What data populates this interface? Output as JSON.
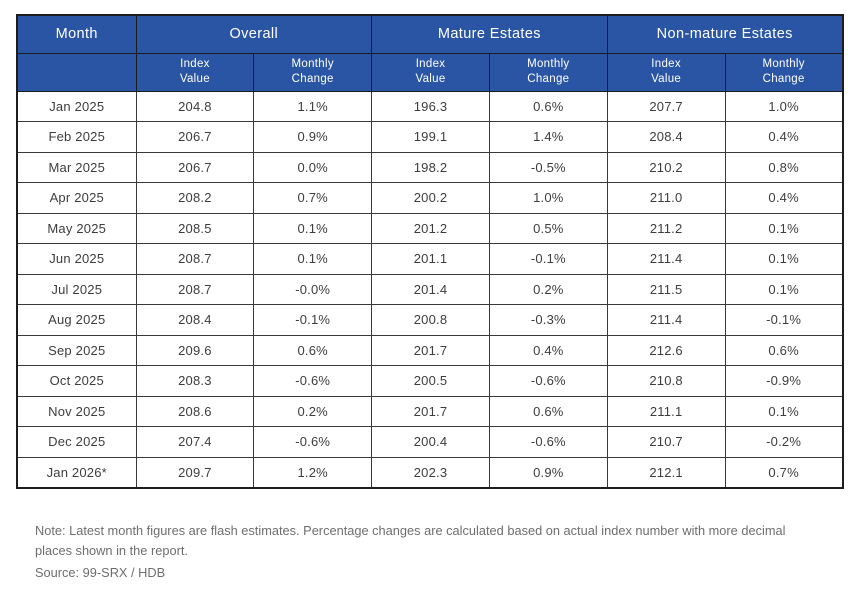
{
  "colors": {
    "header_bg": "#2A55A4",
    "header_text": "#ffffff",
    "cell_text": "#3d3d3d",
    "grid_border": "#3a3a3a",
    "note_text": "#6e6e6e"
  },
  "table": {
    "header_groups": {
      "month": "Month",
      "overall": "Overall",
      "mature": "Mature Estates",
      "non_mature": "Non-mature Estates"
    },
    "subheaders": [
      {
        "l1": "Index",
        "l2": "Value"
      },
      {
        "l1": "Monthly",
        "l2": "Change"
      },
      {
        "l1": "Index",
        "l2": "Value"
      },
      {
        "l1": "Monthly",
        "l2": "Change"
      },
      {
        "l1": "Index",
        "l2": "Value"
      },
      {
        "l1": "Monthly",
        "l2": "Change"
      }
    ],
    "rows": [
      {
        "month": "Jan 2025",
        "values": [
          "204.8",
          "1.1%",
          "196.3",
          "0.6%",
          "207.7",
          "1.0%"
        ]
      },
      {
        "month": "Feb 2025",
        "values": [
          "206.7",
          "0.9%",
          "199.1",
          "1.4%",
          "208.4",
          "0.4%"
        ]
      },
      {
        "month": "Mar 2025",
        "values": [
          "206.7",
          "0.0%",
          "198.2",
          "-0.5%",
          "210.2",
          "0.8%"
        ]
      },
      {
        "month": "Apr 2025",
        "values": [
          "208.2",
          "0.7%",
          "200.2",
          "1.0%",
          "211.0",
          "0.4%"
        ]
      },
      {
        "month": "May 2025",
        "values": [
          "208.5",
          "0.1%",
          "201.2",
          "0.5%",
          "211.2",
          "0.1%"
        ]
      },
      {
        "month": "Jun 2025",
        "values": [
          "208.7",
          "0.1%",
          "201.1",
          "-0.1%",
          "211.4",
          "0.1%"
        ]
      },
      {
        "month": "Jul 2025",
        "values": [
          "208.7",
          "-0.0%",
          "201.4",
          "0.2%",
          "211.5",
          "0.1%"
        ]
      },
      {
        "month": "Aug 2025",
        "values": [
          "208.4",
          "-0.1%",
          "200.8",
          "-0.3%",
          "211.4",
          "-0.1%"
        ]
      },
      {
        "month": "Sep 2025",
        "values": [
          "209.6",
          "0.6%",
          "201.7",
          "0.4%",
          "212.6",
          "0.6%"
        ]
      },
      {
        "month": "Oct 2025",
        "values": [
          "208.3",
          "-0.6%",
          "200.5",
          "-0.6%",
          "210.8",
          "-0.9%"
        ]
      },
      {
        "month": "Nov 2025",
        "values": [
          "208.6",
          "0.2%",
          "201.7",
          "0.6%",
          "211.1",
          "0.1%"
        ]
      },
      {
        "month": "Dec 2025",
        "values": [
          "207.4",
          "-0.6%",
          "200.4",
          "-0.6%",
          "210.7",
          "-0.2%"
        ]
      },
      {
        "month": "Jan 2026*",
        "values": [
          "209.7",
          "1.2%",
          "202.3",
          "0.9%",
          "212.1",
          "0.7%"
        ]
      }
    ]
  },
  "footer": {
    "note": "Note: Latest month figures are flash estimates. Percentage changes are calculated based on actual index number with more decimal places shown in the report.",
    "source": "Source: 99-SRX / HDB"
  }
}
